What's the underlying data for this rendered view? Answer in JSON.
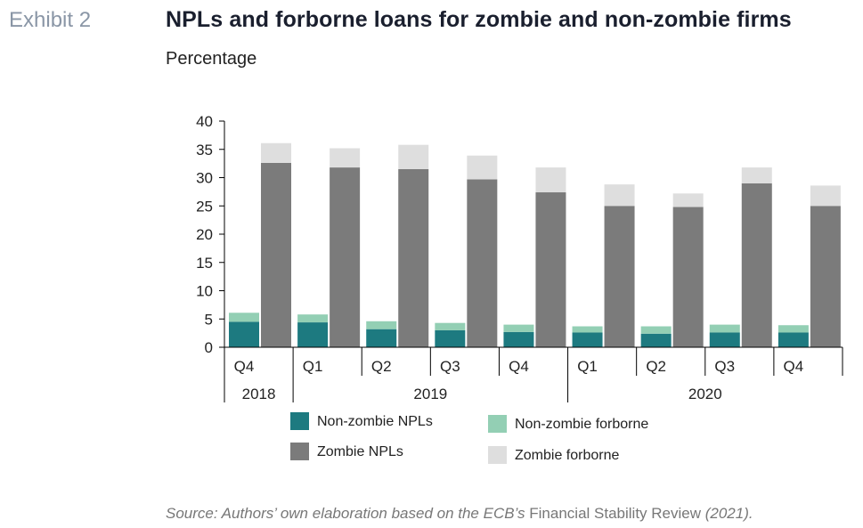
{
  "header": {
    "exhibit": "Exhibit 2",
    "title": "NPLs and forborne loans for zombie and non-zombie firms",
    "subtitle": "Percentage"
  },
  "source": {
    "prefix": "Source: Authors’ own elaboration based on the ECB’s ",
    "publication": "Financial Stability Review",
    "suffix": " (2021)."
  },
  "colors": {
    "non_zombie_npls": "#1d7a80",
    "non_zombie_forborne": "#93cfb4",
    "zombie_npls": "#7b7b7b",
    "zombie_forborne": "#dedede",
    "axis": "#000000"
  },
  "chart_data": {
    "type": "bar",
    "stacked": true,
    "ylim": [
      0,
      40
    ],
    "yticks": [
      "0",
      "5",
      "10",
      "15",
      "20",
      "25",
      "30",
      "35",
      "40"
    ],
    "grid": false,
    "legend_position": "bottom",
    "periods": [
      {
        "quarter": "Q4",
        "year": "2018"
      },
      {
        "quarter": "Q1",
        "year": "2019"
      },
      {
        "quarter": "Q2",
        "year": "2019"
      },
      {
        "quarter": "Q3",
        "year": "2019"
      },
      {
        "quarter": "Q4",
        "year": "2019"
      },
      {
        "quarter": "Q1",
        "year": "2020"
      },
      {
        "quarter": "Q2",
        "year": "2020"
      },
      {
        "quarter": "Q3",
        "year": "2020"
      },
      {
        "quarter": "Q4",
        "year": "2020"
      }
    ],
    "years": [
      "2018",
      "2019",
      "2020"
    ],
    "groups": [
      {
        "name": "Non-zombie",
        "layers": [
          "Non-zombie NPLs",
          "Non-zombie forborne"
        ]
      },
      {
        "name": "Zombie",
        "layers": [
          "Zombie NPLs",
          "Zombie forborne"
        ]
      }
    ],
    "series": [
      {
        "name": "Non-zombie NPLs",
        "color": "#1d7a80",
        "values": [
          4.5,
          4.4,
          3.2,
          3.0,
          2.7,
          2.6,
          2.4,
          2.6,
          2.6
        ]
      },
      {
        "name": "Non-zombie forborne",
        "color": "#93cfb4",
        "values": [
          1.6,
          1.4,
          1.4,
          1.3,
          1.3,
          1.1,
          1.3,
          1.4,
          1.3
        ]
      },
      {
        "name": "Zombie NPLs",
        "color": "#7b7b7b",
        "values": [
          32.6,
          31.8,
          31.5,
          29.7,
          27.4,
          25.0,
          24.8,
          29.0,
          25.0
        ]
      },
      {
        "name": "Zombie forborne",
        "color": "#dedede",
        "values": [
          3.5,
          3.4,
          4.3,
          4.2,
          4.4,
          3.8,
          2.4,
          2.8,
          3.6
        ]
      }
    ],
    "legend": [
      "Non-zombie NPLs",
      "Non-zombie forborne",
      "Zombie NPLs",
      "Zombie forborne"
    ]
  }
}
